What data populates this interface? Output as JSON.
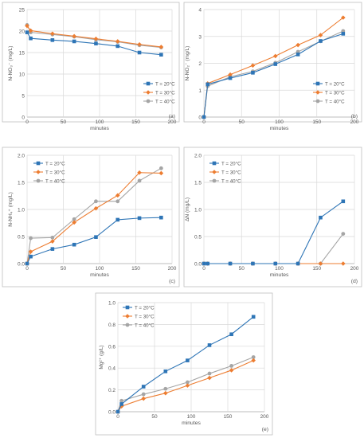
{
  "colors": {
    "t20": "#2e75b6",
    "t30": "#ed7d31",
    "t40": "#a5a5a5",
    "grid": "#d9d9d9",
    "frame": "#bfbfbf",
    "text": "#595959"
  },
  "chart_data": [
    {
      "type": "line",
      "panel_label": "(a)",
      "xlabel": "minutes",
      "ylabel": "N-NO₃⁻ (mg/L)",
      "xlim": [
        0,
        200
      ],
      "ylim": [
        0,
        25
      ],
      "xticks": [
        "0",
        "50",
        "100",
        "150",
        "200"
      ],
      "yticks": [
        "0",
        "5",
        "10",
        "15",
        "20",
        "25"
      ],
      "grid": true,
      "legend_position": "bottom-right",
      "series": [
        {
          "name": "T = 20°C",
          "marker": "square",
          "x": [
            0,
            5,
            35,
            65,
            95,
            125,
            155,
            185
          ],
          "y": [
            19.7,
            18.3,
            17.9,
            17.6,
            17.1,
            16.5,
            15.0,
            14.5
          ]
        },
        {
          "name": "T = 30°C",
          "marker": "diamond",
          "x": [
            0,
            5,
            35,
            65,
            95,
            125,
            155,
            185
          ],
          "y": [
            21.2,
            20.1,
            19.4,
            18.8,
            18.2,
            17.6,
            16.9,
            16.3
          ]
        },
        {
          "name": "T = 40°C",
          "marker": "circle",
          "x": [
            0,
            5,
            35,
            65,
            95,
            125,
            155,
            185
          ],
          "y": [
            21.4,
            19.7,
            19.2,
            18.7,
            18.0,
            17.5,
            16.7,
            16.2
          ]
        }
      ]
    },
    {
      "type": "line",
      "panel_label": "(b)",
      "xlabel": "minutes",
      "ylabel": "N-NO₂⁻ (mg/L)",
      "xlim": [
        0,
        200
      ],
      "ylim": [
        0,
        4
      ],
      "xticks": [
        "0",
        "50",
        "100",
        "150",
        "200"
      ],
      "yticks": [
        "0",
        "1",
        "2",
        "3",
        "4"
      ],
      "grid": true,
      "legend_position": "bottom-right",
      "series": [
        {
          "name": "T = 20°C",
          "marker": "square",
          "x": [
            0,
            5,
            35,
            65,
            95,
            125,
            155,
            185
          ],
          "y": [
            0.0,
            1.22,
            1.45,
            1.65,
            1.97,
            2.33,
            2.83,
            3.1
          ]
        },
        {
          "name": "T = 30°C",
          "marker": "diamond",
          "x": [
            0,
            5,
            35,
            65,
            95,
            125,
            155,
            185
          ],
          "y": [
            0.0,
            1.25,
            1.58,
            1.92,
            2.27,
            2.68,
            3.05,
            3.7
          ]
        },
        {
          "name": "T = 40°C",
          "marker": "circle",
          "x": [
            0,
            5,
            35,
            65,
            95,
            125,
            155,
            185
          ],
          "y": [
            0.0,
            1.15,
            1.5,
            1.7,
            2.02,
            2.43,
            2.82,
            3.2
          ]
        }
      ]
    },
    {
      "type": "line",
      "panel_label": "(c)",
      "xlabel": "minutes",
      "ylabel": "N-NH₄⁺ (mg/L)",
      "xlim": [
        0,
        200
      ],
      "ylim": [
        0,
        2
      ],
      "xticks": [
        "0",
        "50",
        "100",
        "150",
        "200"
      ],
      "yticks": [
        "0.0",
        "0.5",
        "1.0",
        "1.5",
        "2.0"
      ],
      "grid": true,
      "legend_position": "top-left",
      "series": [
        {
          "name": "T = 20°C",
          "marker": "square",
          "x": [
            0,
            5,
            35,
            65,
            95,
            125,
            155,
            185
          ],
          "y": [
            0.0,
            0.13,
            0.27,
            0.35,
            0.49,
            0.81,
            0.84,
            0.85
          ]
        },
        {
          "name": "T = 30°C",
          "marker": "diamond",
          "x": [
            0,
            5,
            35,
            65,
            95,
            125,
            155,
            185
          ],
          "y": [
            0.0,
            0.22,
            0.41,
            0.76,
            1.02,
            1.26,
            1.68,
            1.67
          ]
        },
        {
          "name": "T = 40°C",
          "marker": "circle",
          "x": [
            0,
            5,
            35,
            65,
            95,
            125,
            155,
            185
          ],
          "y": [
            0.0,
            0.47,
            0.48,
            0.82,
            1.15,
            1.15,
            1.53,
            1.76
          ]
        }
      ]
    },
    {
      "type": "line",
      "panel_label": "(d)",
      "xlabel": "minutes",
      "ylabel": "ΔN (mg/L)",
      "xlim": [
        0,
        200
      ],
      "ylim": [
        0,
        2
      ],
      "xticks": [
        "0",
        "50",
        "100",
        "150",
        "200"
      ],
      "yticks": [
        "0.0",
        "0.5",
        "1.0",
        "1.5",
        "2.0"
      ],
      "grid": true,
      "legend_position": "top-left",
      "series": [
        {
          "name": "T = 20°C",
          "marker": "square",
          "x": [
            0,
            5,
            35,
            65,
            95,
            125,
            155,
            185
          ],
          "y": [
            0.0,
            0.0,
            0.0,
            0.0,
            0.0,
            0.0,
            0.85,
            1.15
          ]
        },
        {
          "name": "T = 30°C",
          "marker": "diamond",
          "x": [
            0,
            5,
            35,
            65,
            95,
            125,
            155,
            185
          ],
          "y": [
            0.0,
            0.0,
            0.0,
            0.0,
            0.0,
            0.0,
            0.0,
            0.0
          ]
        },
        {
          "name": "T = 40°C",
          "marker": "circle",
          "x": [
            0,
            5,
            35,
            65,
            95,
            125,
            155,
            185
          ],
          "y": [
            0.0,
            0.0,
            0.0,
            0.0,
            0.0,
            0.0,
            0.0,
            0.55
          ]
        }
      ]
    },
    {
      "type": "line",
      "panel_label": "(e)",
      "xlabel": "minutes",
      "ylabel": "Mg²⁺ (g/L)",
      "xlim": [
        0,
        200
      ],
      "ylim": [
        0,
        1
      ],
      "xticks": [
        "0",
        "50",
        "100",
        "150",
        "200"
      ],
      "yticks": [
        "0.0",
        "0.2",
        "0.4",
        "0.6",
        "0.8",
        "1.0"
      ],
      "grid": true,
      "legend_position": "top-left",
      "series": [
        {
          "name": "T = 20°C",
          "marker": "square",
          "x": [
            0,
            5,
            35,
            65,
            95,
            125,
            155,
            185
          ],
          "y": [
            0.0,
            0.07,
            0.23,
            0.37,
            0.47,
            0.61,
            0.71,
            0.87
          ]
        },
        {
          "name": "T = 30°C",
          "marker": "diamond",
          "x": [
            0,
            5,
            35,
            65,
            95,
            125,
            155,
            185
          ],
          "y": [
            0.0,
            0.05,
            0.12,
            0.17,
            0.24,
            0.31,
            0.38,
            0.47
          ]
        },
        {
          "name": "T = 40°C",
          "marker": "circle",
          "x": [
            0,
            5,
            35,
            65,
            95,
            125,
            155,
            185
          ],
          "y": [
            0.0,
            0.1,
            0.16,
            0.21,
            0.27,
            0.35,
            0.42,
            0.5
          ]
        }
      ]
    }
  ]
}
